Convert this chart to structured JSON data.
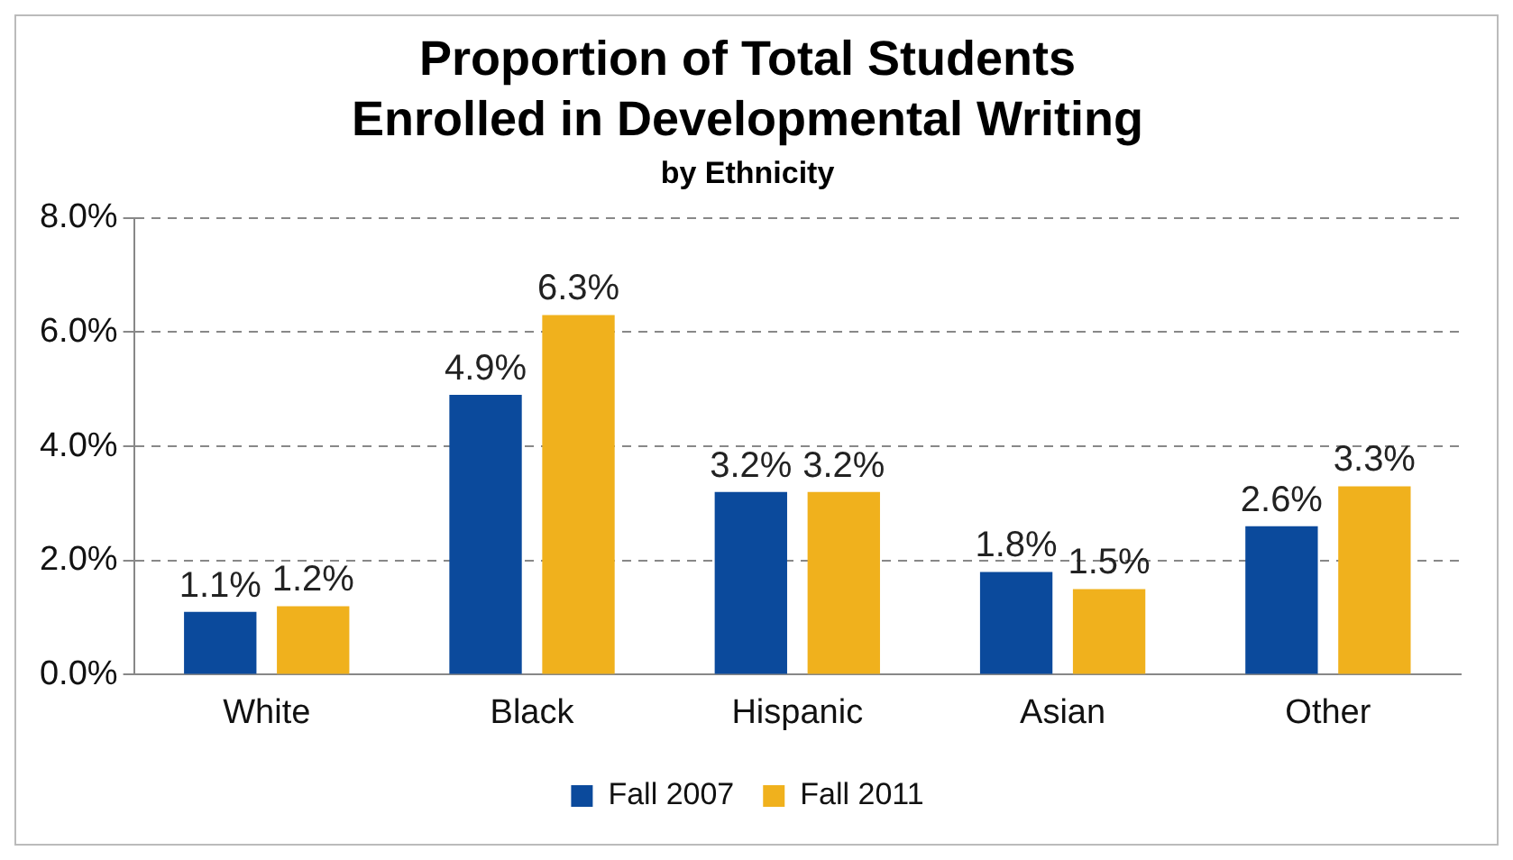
{
  "chart_data": {
    "type": "bar",
    "title": "Proportion of Total Students\nEnrolled in Developmental Writing",
    "subtitle": "by Ethnicity",
    "categories": [
      "White",
      "Black",
      "Hispanic",
      "Asian",
      "Other"
    ],
    "series": [
      {
        "name": "Fall 2007",
        "color": "#0b4a9c",
        "values": [
          1.1,
          4.9,
          3.2,
          1.8,
          2.6
        ],
        "value_labels": [
          "1.1%",
          "4.9%",
          "3.2%",
          "1.8%",
          "2.6%"
        ]
      },
      {
        "name": "Fall 2011",
        "color": "#f0b11d",
        "values": [
          1.2,
          6.3,
          3.2,
          1.5,
          3.3
        ],
        "value_labels": [
          "1.2%",
          "6.3%",
          "3.2%",
          "1.5%",
          "3.3%"
        ]
      }
    ],
    "ylim": [
      0,
      8
    ],
    "yticks": [
      {
        "value": 0,
        "label": "0.0%"
      },
      {
        "value": 2,
        "label": "2.0%"
      },
      {
        "value": 4,
        "label": "4.0%"
      },
      {
        "value": 6,
        "label": "6.0%"
      },
      {
        "value": 8,
        "label": "8.0%"
      }
    ],
    "grid": "y",
    "legend": "bottom"
  }
}
